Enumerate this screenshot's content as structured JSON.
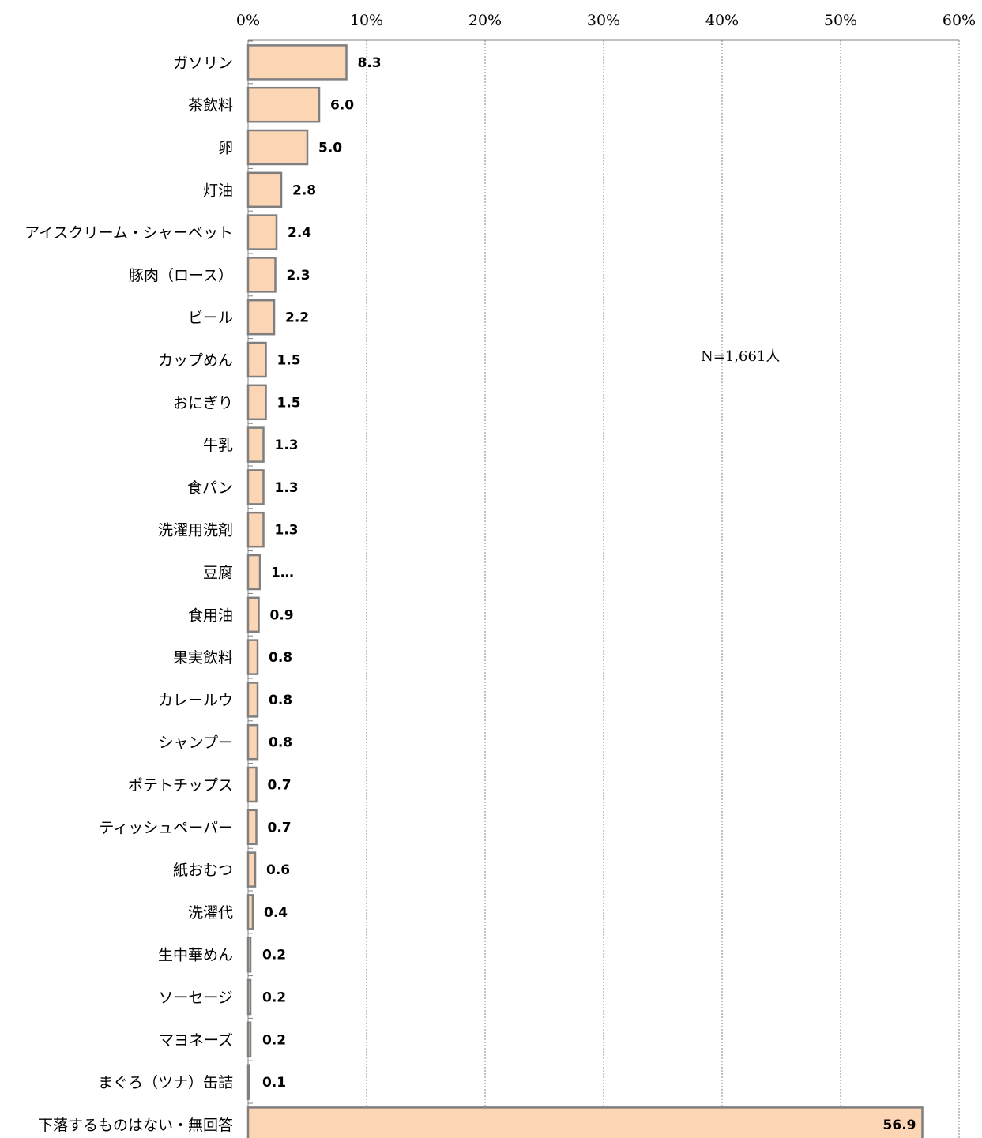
{
  "chart_data": {
    "type": "bar",
    "orientation": "horizontal",
    "title": "",
    "xlabel": "",
    "ylabel": "",
    "xlim": [
      0,
      60
    ],
    "x_ticks": [
      "0%",
      "10%",
      "20%",
      "30%",
      "40%",
      "50%",
      "60%"
    ],
    "x_axis_position": "top",
    "grid": true,
    "legend": "none",
    "annotation": "N=1,661人",
    "bar_color": "#fcd5b5",
    "bar_edge_color": "#7f7f7f",
    "series": [
      {
        "values": [
          8.3,
          6.0,
          5.0,
          2.8,
          2.4,
          2.3,
          2.2,
          1.5,
          1.5,
          1.3,
          1.3,
          1.3,
          1.0,
          0.9,
          0.8,
          0.8,
          0.8,
          0.7,
          0.7,
          0.6,
          0.4,
          0.2,
          0.2,
          0.2,
          0.1,
          56.9
        ],
        "data_labels": [
          "8.3",
          "6.0",
          "5.0",
          "2.8",
          "2.4",
          "2.3",
          "2.2",
          "1.5",
          "1.5",
          "1.3",
          "1.3",
          "1.3",
          "1…",
          "0.9",
          "0.8",
          "0.8",
          "0.8",
          "0.7",
          "0.7",
          "0.6",
          "0.4",
          "0.2",
          "0.2",
          "0.2",
          "0.1",
          "56.9"
        ]
      }
    ],
    "categories": [
      "ガソリン",
      "茶飲料",
      "卵",
      "灯油",
      "アイスクリーム・シャーベット",
      "豚肉（ロース）",
      "ビール",
      "カップめん",
      "おにぎり",
      "牛乳",
      "食パン",
      "洗濯用洗剤",
      "豆腐",
      "食用油",
      "果実飲料",
      "カレールウ",
      "シャンプー",
      "ポテトチップス",
      "ティッシュペーパー",
      "紙おむつ",
      "洗濯代",
      "生中華めん",
      "ソーセージ",
      "マヨネーズ",
      "まぐろ（ツナ）缶詰",
      "下落するものはない・無回答"
    ]
  }
}
